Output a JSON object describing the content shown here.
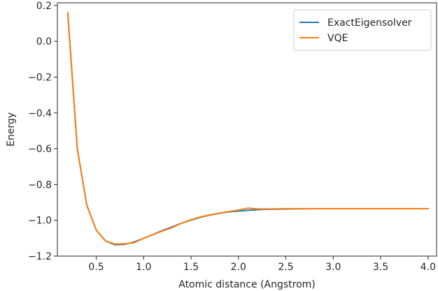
{
  "chart_data": {
    "type": "line",
    "xlabel": "Atomic distance (Angstrom)",
    "ylabel": "Energy",
    "xlim": [
      0.09,
      4.09
    ],
    "ylim": [
      -1.2,
      0.215
    ],
    "xticks": [
      0.5,
      1.0,
      1.5,
      2.0,
      2.5,
      3.0,
      3.5,
      4.0
    ],
    "xtick_labels": [
      "0.5",
      "1.0",
      "1.5",
      "2.0",
      "2.5",
      "3.0",
      "3.5",
      "4.0"
    ],
    "yticks": [
      0.2,
      0.0,
      -0.2,
      -0.4,
      -0.6,
      -0.8,
      -1.0,
      -1.2
    ],
    "ytick_labels": [
      "0.2",
      "0.0",
      "−0.2",
      "−0.4",
      "−0.6",
      "−0.8",
      "−1.0",
      "−1.2"
    ],
    "grid": false,
    "legend_position": "top-right",
    "series": [
      {
        "name": "ExactEigensolver",
        "color": "#1f77b4",
        "x": [
          0.2,
          0.3,
          0.4,
          0.5,
          0.6,
          0.7,
          0.8,
          0.9,
          1.0,
          1.1,
          1.2,
          1.3,
          1.4,
          1.5,
          1.6,
          1.7,
          1.8,
          1.9,
          2.0,
          2.1,
          2.2,
          2.3,
          2.4,
          2.5,
          2.6,
          2.7,
          2.8,
          2.9,
          3.0,
          3.1,
          3.2,
          3.3,
          3.4,
          3.5,
          3.6,
          3.7,
          3.8,
          3.9,
          4.0
        ],
        "y": [
          0.158,
          -0.601,
          -0.915,
          -1.055,
          -1.116,
          -1.137,
          -1.134,
          -1.121,
          -1.101,
          -1.079,
          -1.057,
          -1.037,
          -1.016,
          -0.999,
          -0.983,
          -0.971,
          -0.961,
          -0.953,
          -0.948,
          -0.944,
          -0.941,
          -0.939,
          -0.938,
          -0.937,
          -0.936,
          -0.936,
          -0.935,
          -0.935,
          -0.935,
          -0.935,
          -0.935,
          -0.935,
          -0.935,
          -0.935,
          -0.935,
          -0.935,
          -0.935,
          -0.935,
          -0.935
        ]
      },
      {
        "name": "VQE",
        "color": "#ff7f0e",
        "x": [
          0.2,
          0.3,
          0.4,
          0.5,
          0.6,
          0.7,
          0.8,
          0.9,
          1.0,
          1.1,
          1.2,
          1.3,
          1.4,
          1.5,
          1.6,
          1.7,
          1.8,
          1.9,
          2.0,
          2.1,
          2.2,
          2.3,
          2.4,
          2.5,
          2.6,
          2.7,
          2.8,
          2.9,
          3.0,
          3.1,
          3.2,
          3.3,
          3.4,
          3.5,
          3.6,
          3.7,
          3.8,
          3.9,
          4.0
        ],
        "y": [
          0.158,
          -0.601,
          -0.915,
          -1.055,
          -1.116,
          -1.133,
          -1.131,
          -1.125,
          -1.101,
          -1.079,
          -1.06,
          -1.041,
          -1.016,
          -0.997,
          -0.981,
          -0.97,
          -0.96,
          -0.951,
          -0.943,
          -0.932,
          -0.936,
          -0.937,
          -0.936,
          -0.935,
          -0.935,
          -0.935,
          -0.935,
          -0.935,
          -0.935,
          -0.935,
          -0.935,
          -0.935,
          -0.935,
          -0.935,
          -0.935,
          -0.935,
          -0.935,
          -0.935,
          -0.935
        ]
      }
    ]
  }
}
